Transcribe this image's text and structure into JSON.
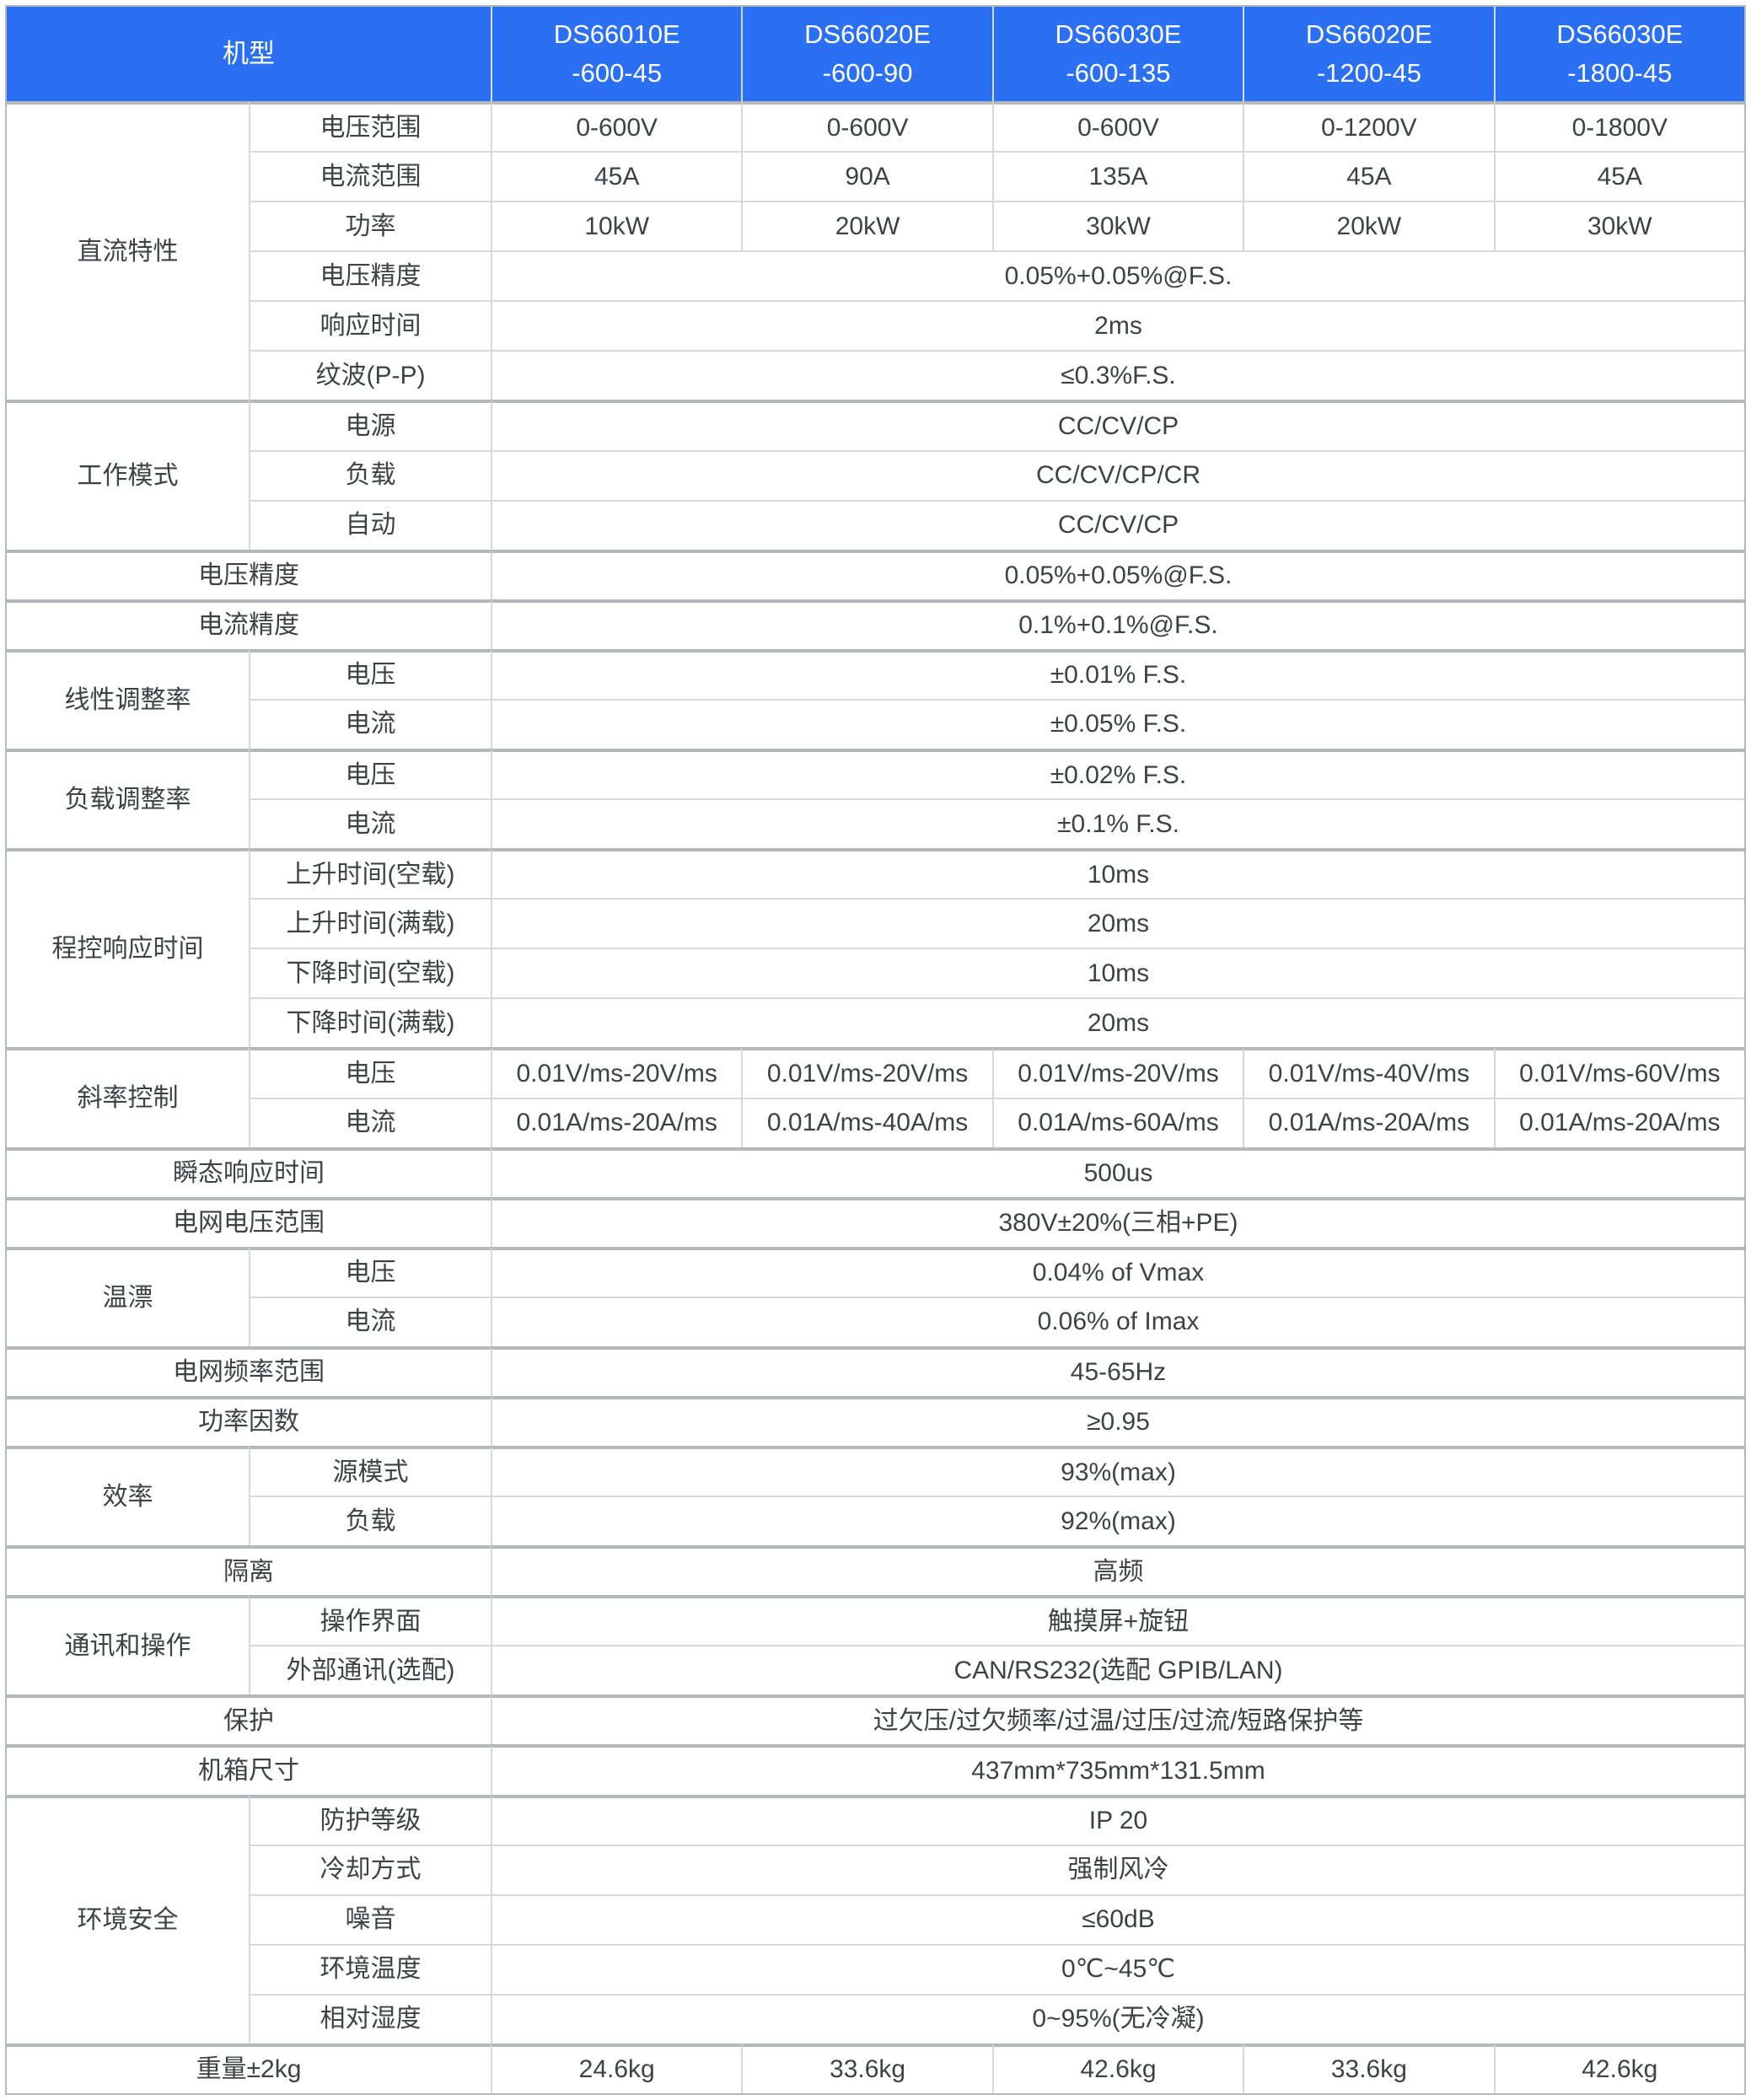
{
  "colors": {
    "header_bg": "#2B6FF3",
    "header_text": "#ffffff",
    "body_text": "#3f4245",
    "grid_line_light": "#d6d8d9",
    "grid_line_dark": "#b4b8bb",
    "cell_bg": "#ffffff"
  },
  "header": {
    "corner_label": "机型",
    "models": [
      {
        "name": "DS66010E",
        "suffix": "-600-45"
      },
      {
        "name": "DS66020E",
        "suffix": "-600-90"
      },
      {
        "name": "DS66030E",
        "suffix": "-600-135"
      },
      {
        "name": "DS66020E",
        "suffix": "-1200-45"
      },
      {
        "name": "DS66030E",
        "suffix": "-1800-45"
      }
    ]
  },
  "sections": [
    {
      "group": "直流特性",
      "rows": [
        {
          "label": "电压范围",
          "values": [
            "0-600V",
            "0-600V",
            "0-600V",
            "0-1200V",
            "0-1800V"
          ]
        },
        {
          "label": "电流范围",
          "values": [
            "45A",
            "90A",
            "135A",
            "45A",
            "45A"
          ]
        },
        {
          "label": "功率",
          "values": [
            "10kW",
            "20kW",
            "30kW",
            "20kW",
            "30kW"
          ]
        },
        {
          "label": "电压精度",
          "value": "0.05%+0.05%@F.S."
        },
        {
          "label": "响应时间",
          "value": "2ms"
        },
        {
          "label": "纹波(P-P)",
          "value": "≤0.3%F.S."
        }
      ]
    },
    {
      "group": "工作模式",
      "rows": [
        {
          "label": "电源",
          "value": "CC/CV/CP"
        },
        {
          "label": "负载",
          "value": "CC/CV/CP/CR"
        },
        {
          "label": "自动",
          "value": "CC/CV/CP"
        }
      ]
    },
    {
      "label": "电压精度",
      "value": "0.05%+0.05%@F.S."
    },
    {
      "label": "电流精度",
      "value": "0.1%+0.1%@F.S."
    },
    {
      "group": "线性调整率",
      "rows": [
        {
          "label": "电压",
          "value": "±0.01% F.S."
        },
        {
          "label": "电流",
          "value": "±0.05% F.S."
        }
      ]
    },
    {
      "group": "负载调整率",
      "rows": [
        {
          "label": "电压",
          "value": "±0.02% F.S."
        },
        {
          "label": "电流",
          "value": "±0.1% F.S."
        }
      ]
    },
    {
      "group": "程控响应时间",
      "rows": [
        {
          "label": "上升时间(空载)",
          "value": "10ms"
        },
        {
          "label": "上升时间(满载)",
          "value": "20ms"
        },
        {
          "label": "下降时间(空载)",
          "value": "10ms"
        },
        {
          "label": "下降时间(满载)",
          "value": "20ms"
        }
      ]
    },
    {
      "group": "斜率控制",
      "rows": [
        {
          "label": "电压",
          "values": [
            "0.01V/ms-20V/ms",
            "0.01V/ms-20V/ms",
            "0.01V/ms-20V/ms",
            "0.01V/ms-40V/ms",
            "0.01V/ms-60V/ms"
          ]
        },
        {
          "label": "电流",
          "values": [
            "0.01A/ms-20A/ms",
            "0.01A/ms-40A/ms",
            "0.01A/ms-60A/ms",
            "0.01A/ms-20A/ms",
            "0.01A/ms-20A/ms"
          ]
        }
      ]
    },
    {
      "label": "瞬态响应时间",
      "value": "500us"
    },
    {
      "label": "电网电压范围",
      "value": "380V±20%(三相+PE)"
    },
    {
      "group": "温漂",
      "rows": [
        {
          "label": "电压",
          "value": "0.04% of Vmax"
        },
        {
          "label": "电流",
          "value": "0.06% of Imax"
        }
      ]
    },
    {
      "label": "电网频率范围",
      "value": "45-65Hz"
    },
    {
      "label": "功率因数",
      "value": "≥0.95"
    },
    {
      "group": "效率",
      "rows": [
        {
          "label": "源模式",
          "value": "93%(max)"
        },
        {
          "label": "负载",
          "value": "92%(max)"
        }
      ]
    },
    {
      "label": "隔离",
      "value": "高频"
    },
    {
      "group": "通讯和操作",
      "rows": [
        {
          "label": "操作界面",
          "value": "触摸屏+旋钮"
        },
        {
          "label": "外部通讯(选配)",
          "value": "CAN/RS232(选配 GPIB/LAN)"
        }
      ]
    },
    {
      "label": "保护",
      "value": "过欠压/过欠频率/过温/过压/过流/短路保护等"
    },
    {
      "label": "机箱尺寸",
      "value": "437mm*735mm*131.5mm"
    },
    {
      "group": "环境安全",
      "rows": [
        {
          "label": "防护等级",
          "value": "IP 20"
        },
        {
          "label": "冷却方式",
          "value": "强制风冷"
        },
        {
          "label": "噪音",
          "value": "≤60dB"
        },
        {
          "label": "环境温度",
          "value": "0℃~45℃"
        },
        {
          "label": "相对湿度",
          "value": "0~95%(无冷凝)"
        }
      ]
    },
    {
      "label": "重量±2kg",
      "values": [
        "24.6kg",
        "33.6kg",
        "42.6kg",
        "33.6kg",
        "42.6kg"
      ]
    }
  ]
}
